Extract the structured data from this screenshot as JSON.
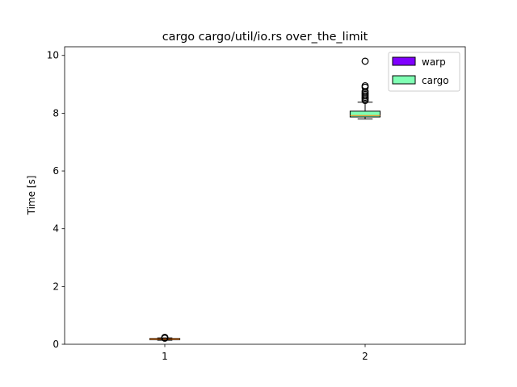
{
  "chart_data": {
    "type": "box",
    "title": "cargo cargo/util/io.rs over_the_limit",
    "xlabel": "",
    "ylabel": "Time [s]",
    "categories": [
      "1",
      "2"
    ],
    "ylim": [
      0,
      10.3
    ],
    "yticks": [
      "0",
      "2",
      "4",
      "6",
      "8",
      "10"
    ],
    "grid": false,
    "legend_position": "upper right",
    "series": [
      {
        "name": "warp",
        "color": "#8000ff",
        "category": "1",
        "whisker_low": 0.14,
        "q1": 0.16,
        "median": 0.18,
        "q3": 0.2,
        "whisker_high": 0.22,
        "fliers": [
          0.21,
          0.23,
          0.24
        ]
      },
      {
        "name": "cargo",
        "color": "#80ffb4",
        "category": "2",
        "whisker_low": 7.8,
        "q1": 7.87,
        "median": 7.92,
        "q3": 8.07,
        "whisker_high": 8.38,
        "fliers": [
          8.44,
          8.5,
          8.55,
          8.6,
          8.65,
          8.7,
          8.75,
          8.9,
          8.95,
          9.8
        ]
      }
    ]
  }
}
